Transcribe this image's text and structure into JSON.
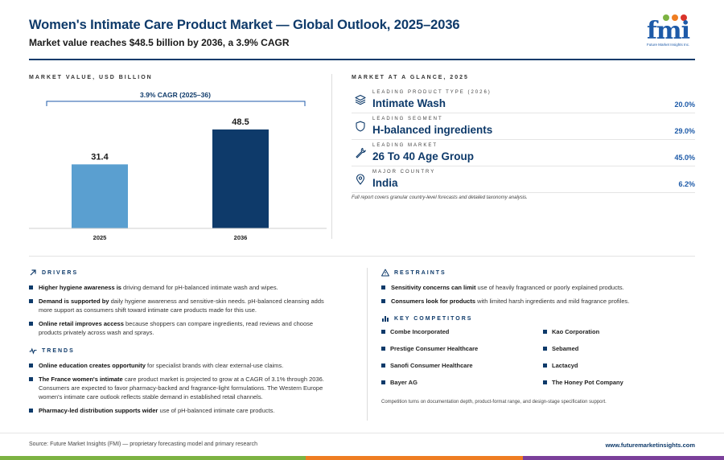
{
  "header": {
    "title": "Women's Intimate Care Product Market — Global Outlook, 2025–2036",
    "subtitle": "Market value reaches $48.5 billion by 2036, a 3.9% CAGR",
    "logo_word": "fmi",
    "logo_tag": "Future Market Insights Inc."
  },
  "colors": {
    "navy": "#0e3a6a",
    "bar_2025": "#5a9fd0",
    "bar_2036": "#0e3a6a",
    "accent_blue": "#1d5aa8",
    "bar_green": "#7cb342",
    "bar_orange": "#ef7d22",
    "bar_purple": "#7b3f9a"
  },
  "market_value": {
    "label": "MARKET VALUE, USD BILLION",
    "cagr_label": "3.9% CAGR (2025–36)"
  },
  "chart_data": {
    "type": "bar",
    "categories": [
      "2025",
      "2036"
    ],
    "values": [
      31.4,
      48.5
    ],
    "value_labels": [
      "31.4",
      "48.5"
    ],
    "title": "",
    "xlabel": "",
    "ylabel": "",
    "ylim": [
      0,
      56
    ],
    "grid": false,
    "annotation": "3.9% CAGR (2025–36)"
  },
  "glance": {
    "label": "MARKET AT A GLANCE, 2025",
    "rows": [
      {
        "icon": "layers-icon",
        "category": "LEADING PRODUCT TYPE (2026)",
        "value": "Intimate Wash",
        "pct": "20.0%"
      },
      {
        "icon": "shield-icon",
        "category": "LEADING SEGMENT",
        "value": "H-balanced ingredients",
        "pct": "29.0%"
      },
      {
        "icon": "wrench-icon",
        "category": "LEADING MARKET",
        "value": "26 To 40 Age Group",
        "pct": "45.0%"
      },
      {
        "icon": "location-pin-icon",
        "category": "MAJOR COUNTRY",
        "value": "India",
        "pct": "6.2%"
      }
    ],
    "note": "Full report covers granular country-level forecasts and detailed taxonomy analysis."
  },
  "drivers": {
    "label": "DRIVERS",
    "items": [
      {
        "bold": "Higher hygiene awareness is",
        "rest": " driving demand for pH-balanced intimate wash and wipes."
      },
      {
        "bold": "Demand is supported by",
        "rest": " daily hygiene awareness and sensitive-skin needs. pH-balanced cleansing adds more support as consumers shift toward intimate care products made for this use."
      },
      {
        "bold": "Online retail improves access",
        "rest": " because shoppers can compare ingredients, read reviews and choose products privately across wash and sprays."
      }
    ]
  },
  "trends": {
    "label": "TRENDS",
    "items": [
      {
        "bold": "Online education creates opportunity",
        "rest": " for specialist brands with clear external-use claims."
      },
      {
        "bold": "The France women's intimate",
        "rest": " care product market is projected to grow at a CAGR of 3.1% through 2036. Consumers are expected to favor pharmacy-backed and fragrance-light formulations. The Western Europe women's intimate care outlook reflects stable demand in established retail channels."
      },
      {
        "bold": "Pharmacy-led distribution supports wider",
        "rest": " use of pH-balanced intimate care products."
      }
    ]
  },
  "restraints": {
    "label": "RESTRAINTS",
    "items": [
      {
        "bold": "Sensitivity concerns can limit",
        "rest": " use of heavily fragranced or poorly explained products."
      },
      {
        "bold": "Consumers look for products",
        "rest": " with limited harsh ingredients and mild fragrance profiles."
      }
    ]
  },
  "competitors": {
    "label": "KEY COMPETITORS",
    "names": [
      "Combe Incorporated",
      "Kao Corporation",
      "Prestige Consumer Healthcare",
      "Sebamed",
      "Sanofi Consumer Healthcare",
      "Lactacyd",
      "Bayer AG",
      "The Honey Pot Company"
    ],
    "note": "Competition turns on documentation depth, product-format range, and design-stage specification support."
  },
  "footer": {
    "source": "Source: Future Market Insights (FMI) — proprietary forecasting model and primary research",
    "url": "www.futuremarketinsights.com"
  }
}
